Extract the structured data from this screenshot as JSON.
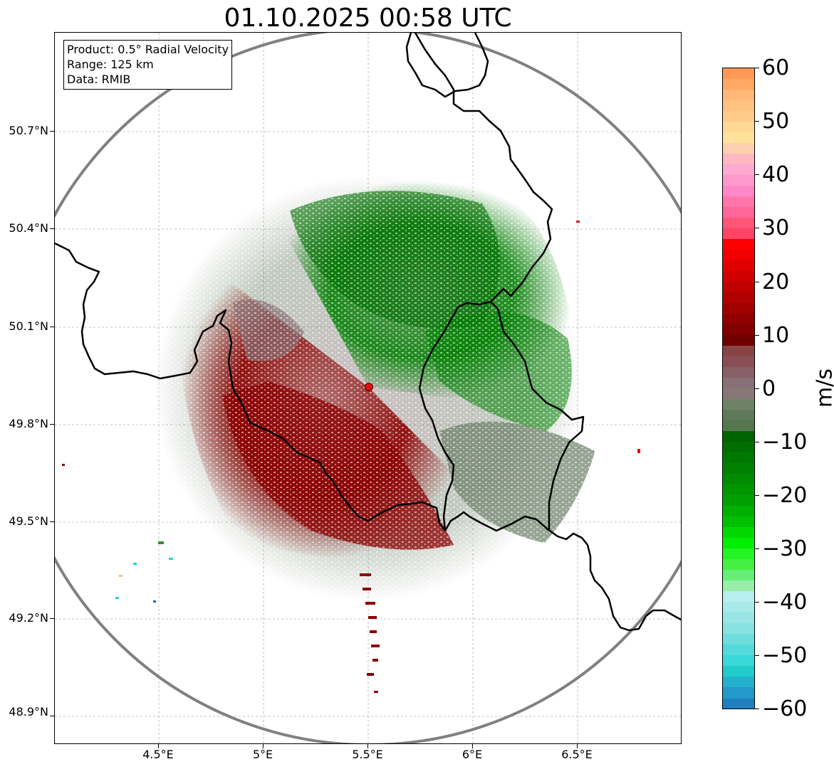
{
  "title": "01.10.2025 00:58 UTC",
  "info_box": {
    "product": "Product: 0.5° Radial Velocity",
    "range": "Range: 125 km",
    "data": "Data: RMIB"
  },
  "axes": {
    "y_ticks": [
      "50.7°N",
      "50.4°N",
      "50.1°N",
      "49.8°N",
      "49.5°N",
      "49.2°N",
      "48.9°N"
    ],
    "x_ticks": [
      "4.5°E",
      "5°E",
      "5.5°E",
      "6°E",
      "6.5°E"
    ]
  },
  "colorbar": {
    "unit": "m/s",
    "ticks": [
      "60",
      "50",
      "40",
      "30",
      "20",
      "10",
      "0",
      "−10",
      "−20",
      "−30",
      "−40",
      "−50",
      "−60"
    ],
    "min": -60,
    "max": 60
  },
  "colors": {
    "ring": "#808080",
    "border": "#000000",
    "grid": "#b0b0b0",
    "outbound": "#8b0000",
    "inbound": "#008000",
    "near_zero": "#6b7f66",
    "radar_site": "#e01010"
  }
}
